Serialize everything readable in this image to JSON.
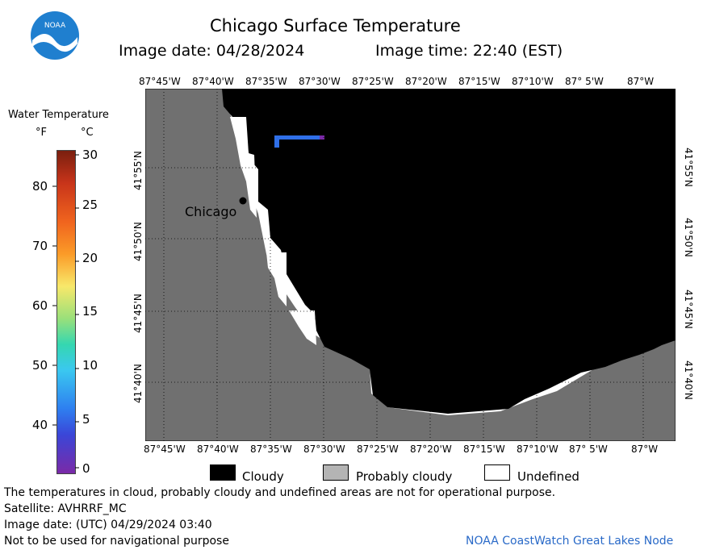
{
  "header": {
    "logo_text": "NOAA",
    "title": "Chicago Surface Temperature",
    "image_date": "Image date: 04/28/2024",
    "image_time": "Image time: 22:40 (EST)"
  },
  "colorbar": {
    "title": "Water Temperature",
    "unit_f": "°F",
    "unit_c": "°C",
    "f_ticks": [
      "80",
      "70",
      "60",
      "50",
      "40"
    ],
    "c_ticks": [
      "30",
      "25",
      "20",
      "15",
      "10",
      "5",
      "0"
    ]
  },
  "map": {
    "lon_labels": [
      "87°45'W",
      "87°40'W",
      "87°35'W",
      "87°30'W",
      "87°25'W",
      "87°20'W",
      "87°15'W",
      "87°10'W",
      "87° 5'W",
      "87°W"
    ],
    "lat_labels": [
      "41°55'N",
      "41°50'N",
      "41°45'N",
      "41°40'N"
    ],
    "city_label": "Chicago",
    "colors": {
      "land": "#707070",
      "cloudy": "#000000",
      "undefined": "#ffffff",
      "probably_cloudy": "#b4b4b4",
      "water_strip": "#2f6fe8"
    }
  },
  "legend": {
    "cloudy": "Cloudy",
    "probably_cloudy": "Probably cloudy",
    "undefined": "Undefined"
  },
  "footer": {
    "disclaimer": "The temperatures in cloud, probably cloudy and undefined areas are not for operational purpose.",
    "satellite": "Satellite: AVHRRF_MC",
    "utc_date": "Image date: (UTC) 04/29/2024  03:40",
    "nav_warning": "Not to be used for navigational purpose",
    "credit": "NOAA CoastWatch Great Lakes Node"
  }
}
